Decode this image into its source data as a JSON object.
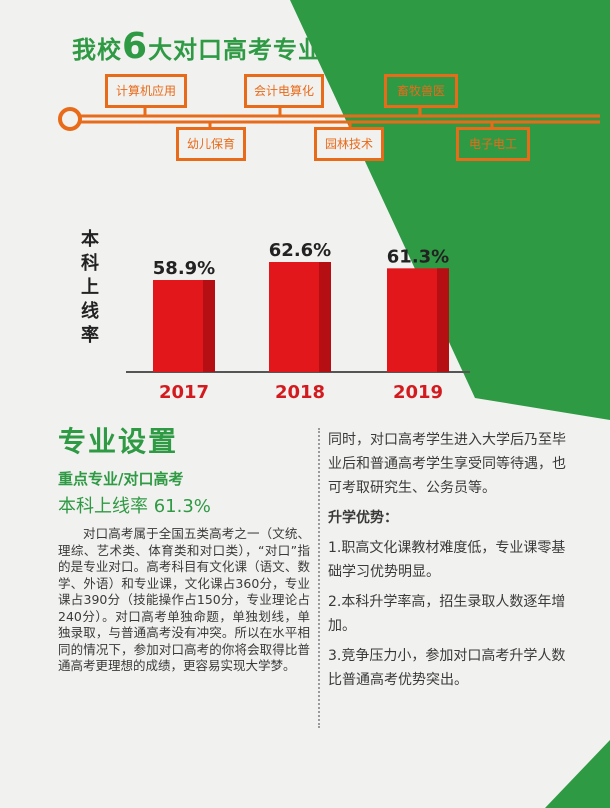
{
  "header": {
    "title_prefix": "我校",
    "title_number": "6",
    "title_suffix": "大对口高考专业分类图"
  },
  "majors": [
    "计算机应用",
    "幼儿保育",
    "会计电算化",
    "园林技术",
    "畜牧兽医",
    "电子电工"
  ],
  "colors": {
    "green": "#2f9a44",
    "orange": "#e86b1a",
    "red": "#e2171b"
  },
  "chart_data": {
    "type": "bar",
    "categories": [
      "2017",
      "2018",
      "2019"
    ],
    "values": [
      58.9,
      62.6,
      61.3
    ],
    "value_labels": [
      "58.9%",
      "62.6%",
      "61.3%"
    ],
    "ylabel": "本科上线率"
  },
  "section": {
    "title": "专业设置",
    "subtitle": "重点专业/对口高考",
    "rate_line": "本科上线率 61.3%",
    "paragraph": "对口高考属于全国五类高考之一（文统、理综、艺术类、体育类和对口类），“对口”指的是专业对口。高考科目有文化课（语文、数学、外语）和专业课，文化课占360分，专业课占390分（技能操作占150分，专业理论占240分）。对口高考单独命题，单独划线，单独录取，与普通高考没有冲突。所以在水平相同的情况下，参加对口高考的你将会取得比普通高考更理想的成绩，更容易实现大学梦。"
  },
  "right": {
    "intro": "同时，对口高考学生进入大学后乃至毕业后和普通高考学生享受同等待遇，也可考取研究生、公务员等。",
    "heading": "升学优势：",
    "items": [
      "1.职高文化课教材难度低，专业课零基础学习优势明显。",
      "2.本科升学率高，招生录取人数逐年增加。",
      "3.竞争压力小，参加对口高考升学人数比普通高考优势突出。"
    ]
  }
}
